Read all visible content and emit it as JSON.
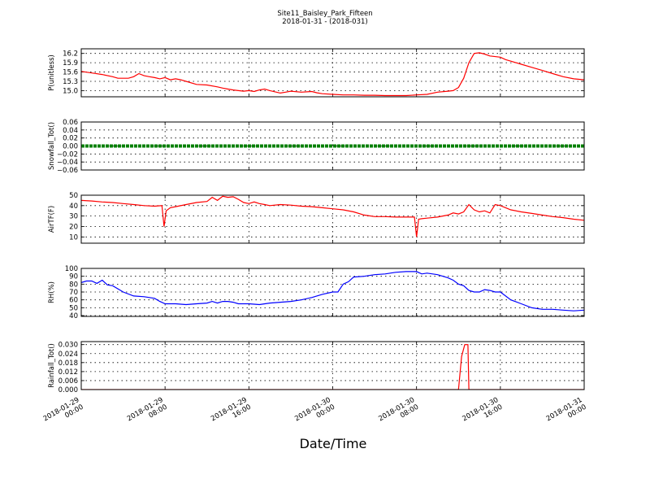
{
  "chart_data": {
    "type": "line",
    "title": "Site11_Baisley_Park_Fifteen",
    "subtitle": "2018-01-31 - (2018-031)",
    "xlabel": "Date/Time",
    "x_tick_labels": [
      [
        "2018-01-29",
        "00:00"
      ],
      [
        "2018-01-29",
        "08:00"
      ],
      [
        "2018-01-29",
        "16:00"
      ],
      [
        "2018-01-30",
        "00:00"
      ],
      [
        "2018-01-30",
        "08:00"
      ],
      [
        "2018-01-30",
        "16:00"
      ],
      [
        "2018-01-31",
        "00:00"
      ]
    ],
    "xlim_hours": [
      0,
      48
    ],
    "panels": [
      {
        "ylabel": "P(unitless)",
        "ylim": [
          14.8,
          16.35
        ],
        "yticks": [
          "16.2",
          "15.9",
          "15.6",
          "15.3",
          "15.0"
        ],
        "ytick_values": [
          16.2,
          15.9,
          15.6,
          15.3,
          15.0
        ],
        "color": "#ff0000",
        "series": {
          "x": [
            0,
            1,
            2,
            3,
            3.5,
            4,
            4.5,
            5,
            5.5,
            6,
            6.5,
            7,
            7.5,
            8,
            8.5,
            9,
            9.5,
            10,
            11,
            12,
            13,
            13.5,
            14,
            14.5,
            15,
            15.5,
            16,
            16.5,
            17,
            17.5,
            18,
            18.5,
            19,
            19.5,
            20,
            21,
            22,
            22.5,
            23,
            24,
            25,
            26,
            27,
            28,
            29,
            30,
            31,
            32,
            33,
            34,
            35,
            35.5,
            36,
            36.5,
            37,
            37.5,
            38,
            38.5,
            39,
            40,
            40.5,
            41,
            42,
            43,
            44,
            45,
            46,
            47,
            48
          ],
          "y": [
            15.62,
            15.57,
            15.52,
            15.45,
            15.4,
            15.4,
            15.4,
            15.45,
            15.55,
            15.48,
            15.45,
            15.42,
            15.38,
            15.42,
            15.35,
            15.38,
            15.35,
            15.3,
            15.2,
            15.18,
            15.12,
            15.08,
            15.05,
            15.02,
            15.0,
            14.98,
            15.0,
            14.97,
            15.02,
            15.05,
            15.0,
            14.96,
            14.92,
            14.95,
            14.98,
            14.95,
            14.97,
            14.93,
            14.9,
            14.88,
            14.86,
            14.86,
            14.85,
            14.85,
            14.84,
            14.84,
            14.84,
            14.86,
            14.88,
            14.95,
            14.98,
            15.0,
            15.1,
            15.4,
            15.9,
            16.2,
            16.22,
            16.18,
            16.12,
            16.08,
            16.0,
            15.95,
            15.85,
            15.75,
            15.65,
            15.55,
            15.45,
            15.38,
            15.35
          ]
        }
      },
      {
        "ylabel": "Snowfall_Tot()",
        "ylim": [
          -0.06,
          0.06
        ],
        "yticks": [
          "0.06",
          "0.04",
          "0.02",
          "0.00",
          "−0.02",
          "−0.04",
          "−0.06"
        ],
        "ytick_values": [
          0.06,
          0.04,
          0.02,
          0.0,
          -0.02,
          -0.04,
          -0.06
        ],
        "color": "#008000",
        "series": {
          "x": [
            0,
            48
          ],
          "y": [
            0,
            0
          ]
        }
      },
      {
        "ylabel": "AirTF(F)",
        "ylim": [
          4,
          50
        ],
        "yticks": [
          "50",
          "40",
          "30",
          "20",
          "10"
        ],
        "ytick_values": [
          50,
          40,
          30,
          20,
          10
        ],
        "color": "#ff0000",
        "series": {
          "x": [
            0,
            1,
            2,
            3,
            4,
            5,
            6,
            7,
            7.7,
            7.9,
            8.1,
            8.5,
            9,
            10,
            11,
            12,
            12.5,
            13,
            13.5,
            14,
            14.5,
            15,
            15.5,
            16,
            16.5,
            17,
            17.5,
            18,
            19,
            20,
            21,
            22,
            23,
            24,
            25,
            26,
            27,
            28,
            29,
            30,
            31,
            31.8,
            32.0,
            32.2,
            32.5,
            33,
            34,
            35,
            35.5,
            36,
            36.5,
            37,
            37.5,
            38,
            38.5,
            39,
            39.5,
            40,
            41,
            42,
            43,
            44,
            45,
            46,
            47,
            48
          ],
          "y": [
            45,
            44.5,
            43.5,
            43,
            42,
            41,
            40,
            39.5,
            40,
            20,
            35,
            38,
            39,
            41,
            43,
            44,
            48,
            45,
            49,
            48,
            48.5,
            46,
            43,
            42,
            43.5,
            42,
            41,
            40,
            41,
            40.5,
            39.5,
            39,
            38,
            37,
            36,
            34,
            31,
            29.5,
            29.5,
            29,
            29,
            29,
            10,
            27,
            27.5,
            28,
            29,
            31,
            33,
            32,
            34,
            41,
            36,
            34,
            35,
            33,
            41,
            40,
            36,
            34,
            32.5,
            31,
            29.5,
            28.5,
            27,
            26
          ]
        }
      },
      {
        "ylabel": "RH(%)",
        "ylim": [
          39,
          100
        ],
        "yticks": [
          "100",
          "90",
          "80",
          "70",
          "60",
          "50",
          "40"
        ],
        "ytick_values": [
          100,
          90,
          80,
          70,
          60,
          50,
          40
        ],
        "color": "#0000ff",
        "series": {
          "x": [
            0,
            0.5,
            1,
            1.5,
            2,
            2.5,
            3,
            4,
            5,
            6,
            7,
            7.5,
            8,
            9,
            10,
            11,
            12,
            12.5,
            13,
            13.5,
            14,
            14.5,
            15,
            16,
            17,
            18,
            19,
            20,
            21,
            22,
            23,
            24,
            24.5,
            25,
            25.5,
            26,
            27,
            28,
            29,
            30,
            31,
            32,
            32.5,
            33,
            34,
            35,
            35.5,
            36,
            36.5,
            37,
            37.5,
            38,
            38.5,
            39,
            39.5,
            40,
            41,
            42,
            43,
            44,
            45,
            46,
            47,
            48
          ],
          "y": [
            82,
            84,
            84,
            81,
            85,
            79,
            78,
            70,
            65,
            64,
            62,
            58,
            55,
            55,
            54,
            55,
            56,
            58,
            56,
            58,
            58,
            57,
            55,
            55,
            54,
            56,
            57,
            58,
            60,
            63,
            67,
            70,
            70,
            80,
            83,
            89,
            90,
            92,
            93,
            95,
            96,
            96,
            93,
            94,
            92,
            88,
            85,
            80,
            78,
            72,
            70,
            70,
            73,
            72,
            70,
            70,
            60,
            55,
            50,
            48,
            48,
            47,
            46,
            47
          ]
        }
      },
      {
        "ylabel": "Rainfall_Tot()",
        "ylim": [
          0,
          0.032
        ],
        "yticks": [
          "0.030",
          "0.024",
          "0.018",
          "0.012",
          "0.006",
          "0.000"
        ],
        "ytick_values": [
          0.03,
          0.024,
          0.018,
          0.012,
          0.006,
          0.0
        ],
        "color": "#ff0000",
        "series": {
          "x": [
            0,
            36,
            36.3,
            36.6,
            36.9,
            37.0,
            48
          ],
          "y": [
            0,
            0,
            0.022,
            0.03,
            0.03,
            0,
            0
          ]
        }
      }
    ]
  }
}
